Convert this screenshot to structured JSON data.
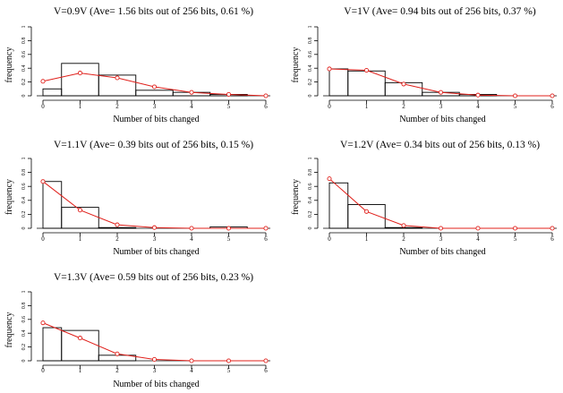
{
  "chart_data": [
    {
      "type": "bar",
      "title": "V=0.9V (Ave= 1.56 bits out of 256 bits,  0.61 %)",
      "xlabel": "Number of bits changed",
      "ylabel": "frequency",
      "xlim": [
        0,
        6
      ],
      "ylim": [
        0,
        1
      ],
      "x_ticks": [
        "0",
        "1",
        "2",
        "3",
        "4",
        "5",
        "6"
      ],
      "y_ticks": [
        "0",
        "0.2",
        "0.4",
        "0.6",
        "0.8",
        "1"
      ],
      "categories": [
        0,
        1,
        2,
        3,
        4,
        5,
        6
      ],
      "series": [
        {
          "type": "bar",
          "values": [
            0.1,
            0.47,
            0.3,
            0.08,
            0.05,
            0.02,
            0.0
          ]
        },
        {
          "type": "line",
          "values": [
            0.21,
            0.33,
            0.26,
            0.13,
            0.05,
            0.02,
            0.0
          ]
        }
      ]
    },
    {
      "type": "bar",
      "title": "V=1V (Ave= 0.94 bits out of 256 bits,  0.37 %)",
      "xlabel": "Number of bits changed",
      "ylabel": "frequency",
      "xlim": [
        0,
        6
      ],
      "ylim": [
        0,
        1
      ],
      "x_ticks": [
        "0",
        "1",
        "2",
        "3",
        "4",
        "5",
        "6"
      ],
      "y_ticks": [
        "0",
        "0.2",
        "0.4",
        "0.6",
        "0.8",
        "1"
      ],
      "categories": [
        0,
        1,
        2,
        3,
        4,
        5,
        6
      ],
      "series": [
        {
          "type": "bar",
          "values": [
            0.39,
            0.36,
            0.19,
            0.05,
            0.02,
            0.0,
            0.0
          ]
        },
        {
          "type": "line",
          "values": [
            0.39,
            0.37,
            0.17,
            0.05,
            0.01,
            0.0,
            0.0
          ]
        }
      ]
    },
    {
      "type": "bar",
      "title": "V=1.1V (Ave= 0.39 bits out of 256 bits,  0.15 %)",
      "xlabel": "Number of bits changed",
      "ylabel": "frequency",
      "xlim": [
        0,
        6
      ],
      "ylim": [
        0,
        1
      ],
      "x_ticks": [
        "0",
        "1",
        "2",
        "3",
        "4",
        "5",
        "6"
      ],
      "y_ticks": [
        "0",
        "0.2",
        "0.4",
        "0.6",
        "0.8",
        "1"
      ],
      "categories": [
        0,
        1,
        2,
        3,
        4,
        5,
        6
      ],
      "series": [
        {
          "type": "bar",
          "values": [
            0.67,
            0.3,
            0.01,
            0.0,
            0.0,
            0.02,
            0.0
          ]
        },
        {
          "type": "line",
          "values": [
            0.67,
            0.26,
            0.05,
            0.01,
            0.0,
            0.0,
            0.0
          ]
        }
      ]
    },
    {
      "type": "bar",
      "title": "V=1.2V (Ave= 0.34 bits out of 256 bits,  0.13 %)",
      "xlabel": "Number of bits changed",
      "ylabel": "frequency",
      "xlim": [
        0,
        6
      ],
      "ylim": [
        0,
        1
      ],
      "x_ticks": [
        "0",
        "1",
        "2",
        "3",
        "4",
        "5",
        "6"
      ],
      "y_ticks": [
        "0",
        "0.2",
        "0.4",
        "0.6",
        "0.8",
        "1"
      ],
      "categories": [
        0,
        1,
        2,
        3,
        4,
        5,
        6
      ],
      "series": [
        {
          "type": "bar",
          "values": [
            0.65,
            0.34,
            0.01,
            0.0,
            0.0,
            0.0,
            0.0
          ]
        },
        {
          "type": "line",
          "values": [
            0.71,
            0.24,
            0.04,
            0.0,
            0.0,
            0.0,
            0.0
          ]
        }
      ]
    },
    {
      "type": "bar",
      "title": "V=1.3V (Ave= 0.59 bits out of 256 bits,  0.23 %)",
      "xlabel": "Number of bits changed",
      "ylabel": "frequency",
      "xlim": [
        0,
        6
      ],
      "ylim": [
        0,
        1
      ],
      "x_ticks": [
        "0",
        "1",
        "2",
        "3",
        "4",
        "5",
        "6"
      ],
      "y_ticks": [
        "0",
        "0.2",
        "0.4",
        "0.6",
        "0.8",
        "1"
      ],
      "categories": [
        0,
        1,
        2,
        3,
        4,
        5,
        6
      ],
      "series": [
        {
          "type": "bar",
          "values": [
            0.48,
            0.44,
            0.08,
            0.0,
            0.0,
            0.0,
            0.0
          ]
        },
        {
          "type": "line",
          "values": [
            0.55,
            0.33,
            0.1,
            0.02,
            0.0,
            0.0,
            0.0
          ]
        }
      ]
    }
  ],
  "colors": {
    "bar_edge": "#000000",
    "curve": "#e0201b",
    "axis": "#000000"
  }
}
